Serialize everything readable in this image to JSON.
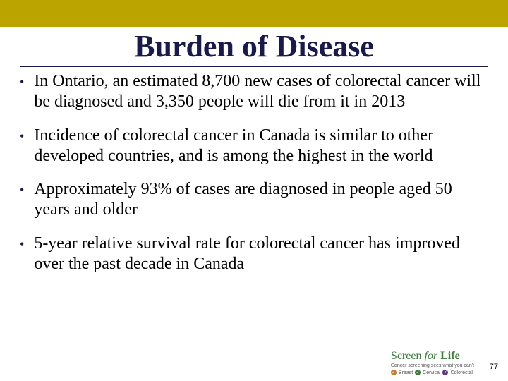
{
  "colors": {
    "top_bar": "#bba400",
    "title_text": "#1a1a4a",
    "title_underline": "#1a1a4a",
    "bullet_dot": "#1a1a4a",
    "body_text": "#000000",
    "logo_text": "#3a7a3a",
    "background": "#ffffff"
  },
  "typography": {
    "title_fontsize": 44,
    "title_weight": "bold",
    "body_fontsize": 24,
    "font_family": "Times New Roman"
  },
  "title": "Burden of Disease",
  "bullets": [
    "In Ontario, an estimated 8,700 new cases of colorectal cancer will be diagnosed and 3,350 people will die from it in 2013",
    "Incidence of colorectal cancer  in Canada is similar to other developed countries, and is among the highest in the world",
    "Approximately 93% of cases are diagnosed in people aged 50 years and older",
    "5-year relative survival rate for colorectal cancer has improved over the past decade in Canada"
  ],
  "logo": {
    "screen": "Screen",
    "for": "for",
    "life": "Life",
    "tagline": "Cancer screening sees what you can't",
    "types": [
      "Breast",
      "Cervical",
      "Colorectal"
    ]
  },
  "page_number": "77"
}
